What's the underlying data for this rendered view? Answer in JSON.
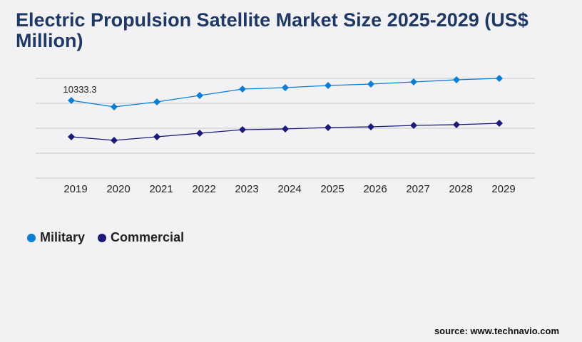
{
  "title": "Electric Propulsion Satellite Market Size 2025-2029 (US$ Million)",
  "source": "source: www.technavio.com",
  "chart_data": {
    "type": "line",
    "title": "Electric Propulsion Satellite Market Size 2025-2029 (US$ Million)",
    "categories": [
      "2019",
      "2020",
      "2021",
      "2022",
      "2023",
      "2024",
      "2025",
      "2026",
      "2027",
      "2028",
      "2029"
    ],
    "series": [
      {
        "name": "Military",
        "color": "#0a7fd6",
        "values": [
          10333.3,
          9480,
          10144,
          10997,
          11850,
          12040,
          12324,
          12514,
          12798,
          13082,
          13272
        ]
      },
      {
        "name": "Commercial",
        "color": "#1c1a7a",
        "values": [
          5498,
          5024,
          5498,
          5972,
          6446,
          6541,
          6731,
          6826,
          7015,
          7110,
          7300
        ]
      }
    ],
    "data_labels": [
      {
        "series": "Military",
        "category": "2019",
        "text": "10333.3"
      }
    ],
    "ylim": [
      0,
      13272
    ],
    "grid": true,
    "legend": "bottom-left",
    "xlabel": "",
    "ylabel": ""
  }
}
